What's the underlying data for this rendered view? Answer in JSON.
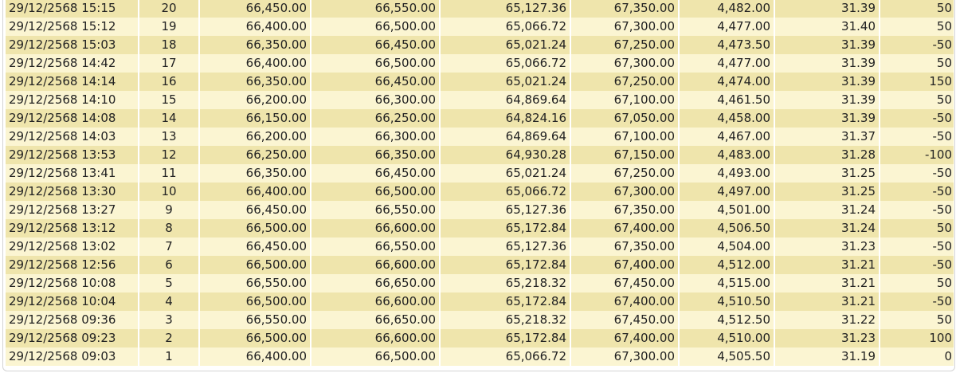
{
  "rows": [
    [
      "29/12/2568 15:15",
      "20",
      "66,450.00",
      "66,550.00",
      "65,127.36",
      "67,350.00",
      "4,482.00",
      "31.39",
      "50"
    ],
    [
      "29/12/2568 15:12",
      "19",
      "66,400.00",
      "66,500.00",
      "65,066.72",
      "67,300.00",
      "4,477.00",
      "31.40",
      "50"
    ],
    [
      "29/12/2568 15:03",
      "18",
      "66,350.00",
      "66,450.00",
      "65,021.24",
      "67,250.00",
      "4,473.50",
      "31.39",
      "-50"
    ],
    [
      "29/12/2568 14:42",
      "17",
      "66,400.00",
      "66,500.00",
      "65,066.72",
      "67,300.00",
      "4,477.00",
      "31.39",
      "50"
    ],
    [
      "29/12/2568 14:14",
      "16",
      "66,350.00",
      "66,450.00",
      "65,021.24",
      "67,250.00",
      "4,474.00",
      "31.39",
      "150"
    ],
    [
      "29/12/2568 14:10",
      "15",
      "66,200.00",
      "66,300.00",
      "64,869.64",
      "67,100.00",
      "4,461.50",
      "31.39",
      "50"
    ],
    [
      "29/12/2568 14:08",
      "14",
      "66,150.00",
      "66,250.00",
      "64,824.16",
      "67,050.00",
      "4,458.00",
      "31.39",
      "-50"
    ],
    [
      "29/12/2568 14:03",
      "13",
      "66,200.00",
      "66,300.00",
      "64,869.64",
      "67,100.00",
      "4,467.00",
      "31.37",
      "-50"
    ],
    [
      "29/12/2568 13:53",
      "12",
      "66,250.00",
      "66,350.00",
      "64,930.28",
      "67,150.00",
      "4,483.00",
      "31.28",
      "-100"
    ],
    [
      "29/12/2568 13:41",
      "11",
      "66,350.00",
      "66,450.00",
      "65,021.24",
      "67,250.00",
      "4,493.00",
      "31.25",
      "-50"
    ],
    [
      "29/12/2568 13:30",
      "10",
      "66,400.00",
      "66,500.00",
      "65,066.72",
      "67,300.00",
      "4,497.00",
      "31.25",
      "-50"
    ],
    [
      "29/12/2568 13:27",
      "9",
      "66,450.00",
      "66,550.00",
      "65,127.36",
      "67,350.00",
      "4,501.00",
      "31.24",
      "-50"
    ],
    [
      "29/12/2568 13:12",
      "8",
      "66,500.00",
      "66,600.00",
      "65,172.84",
      "67,400.00",
      "4,506.50",
      "31.24",
      "50"
    ],
    [
      "29/12/2568 13:02",
      "7",
      "66,450.00",
      "66,550.00",
      "65,127.36",
      "67,350.00",
      "4,504.00",
      "31.23",
      "-50"
    ],
    [
      "29/12/2568 12:56",
      "6",
      "66,500.00",
      "66,600.00",
      "65,172.84",
      "67,400.00",
      "4,512.00",
      "31.21",
      "-50"
    ],
    [
      "29/12/2568 10:08",
      "5",
      "66,550.00",
      "66,650.00",
      "65,218.32",
      "67,450.00",
      "4,515.00",
      "31.21",
      "50"
    ],
    [
      "29/12/2568 10:04",
      "4",
      "66,500.00",
      "66,600.00",
      "65,172.84",
      "67,400.00",
      "4,510.50",
      "31.21",
      "-50"
    ],
    [
      "29/12/2568 09:36",
      "3",
      "66,550.00",
      "66,650.00",
      "65,218.32",
      "67,450.00",
      "4,512.50",
      "31.22",
      "50"
    ],
    [
      "29/12/2568 09:23",
      "2",
      "66,500.00",
      "66,600.00",
      "65,172.84",
      "67,400.00",
      "4,510.00",
      "31.23",
      "100"
    ],
    [
      "29/12/2568 09:03",
      "1",
      "66,400.00",
      "66,500.00",
      "65,066.72",
      "67,300.00",
      "4,505.50",
      "31.19",
      "0"
    ]
  ],
  "colors": {
    "row_dark": "#efe5ac",
    "row_light": "#fbf5d2"
  }
}
